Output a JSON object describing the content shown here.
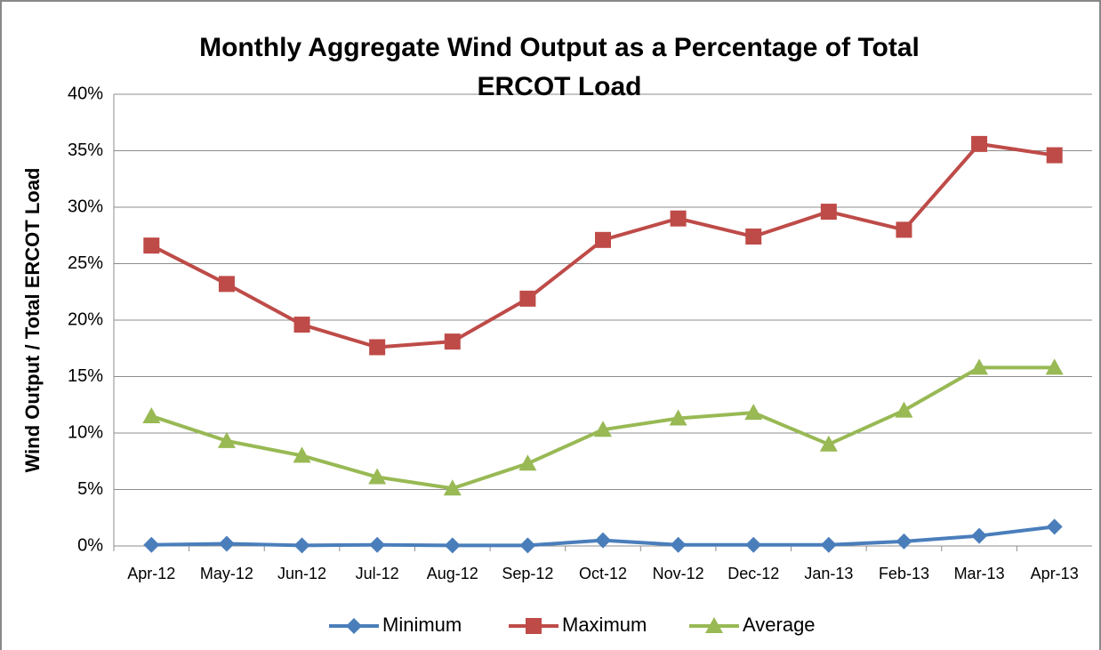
{
  "chart_data": {
    "type": "line",
    "title": "Monthly Aggregate Wind Output as a Percentage of Total ERCOT Load",
    "y_label": "Wind Output / Total ERCOT Load",
    "categories": [
      "Apr-12",
      "May-12",
      "Jun-12",
      "Jul-12",
      "Aug-12",
      "Sep-12",
      "Oct-12",
      "Nov-12",
      "Dec-12",
      "Jan-13",
      "Feb-13",
      "Mar-13",
      "Apr-13"
    ],
    "series": [
      {
        "name": "Minimum",
        "color": "#4a7ebb",
        "marker": "diamond",
        "values": [
          0.1,
          0.2,
          0.05,
          0.1,
          0.05,
          0.05,
          0.5,
          0.1,
          0.1,
          0.1,
          0.4,
          0.9,
          1.7
        ]
      },
      {
        "name": "Maximum",
        "color": "#be4b48",
        "marker": "square",
        "values": [
          26.6,
          23.2,
          19.6,
          17.6,
          18.1,
          21.9,
          27.1,
          29.0,
          27.4,
          29.6,
          28.0,
          35.6,
          34.6
        ]
      },
      {
        "name": "Average",
        "color": "#98b954",
        "marker": "triangle",
        "values": [
          11.5,
          9.3,
          8.0,
          6.1,
          5.1,
          7.3,
          10.3,
          11.3,
          11.8,
          9.0,
          12.0,
          15.8,
          15.8
        ]
      }
    ],
    "ylim": [
      0,
      40
    ],
    "yticks": [
      {
        "value": 0,
        "label": "0%"
      },
      {
        "value": 5,
        "label": "5%"
      },
      {
        "value": 10,
        "label": "10%"
      },
      {
        "value": 15,
        "label": "15%"
      },
      {
        "value": 20,
        "label": "20%"
      },
      {
        "value": 25,
        "label": "25%"
      },
      {
        "value": 30,
        "label": "30%"
      },
      {
        "value": 35,
        "label": "35%"
      },
      {
        "value": 40,
        "label": "40%"
      }
    ],
    "grid": true,
    "legend": "bottom"
  }
}
